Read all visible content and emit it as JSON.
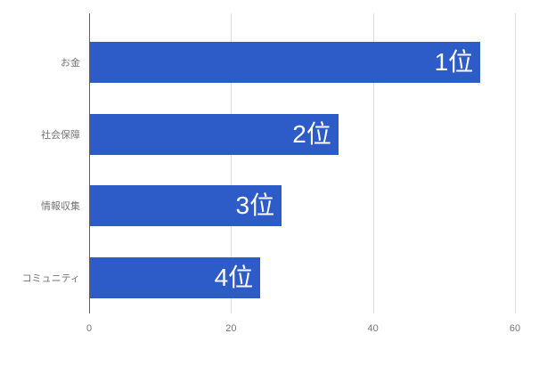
{
  "chart_data": {
    "type": "bar",
    "orientation": "horizontal",
    "title": "",
    "xlabel": "",
    "ylabel": "",
    "categories": [
      "お金",
      "社会保障",
      "情報収集",
      "コミュニティ"
    ],
    "values": [
      55,
      35,
      27,
      24
    ],
    "bar_labels": [
      "1位",
      "2位",
      "3位",
      "4位"
    ],
    "x_ticks": [
      0,
      20,
      40,
      60
    ],
    "xlim": [
      0,
      60
    ],
    "grid": true,
    "legend": "none",
    "bar_color": "#2d5bc7",
    "bar_label_color": "#ffffff",
    "axis_text_color": "#757575",
    "gridline_color": "#e0e0e0",
    "baseline_color": "#616161",
    "background_color": "#ffffff"
  }
}
